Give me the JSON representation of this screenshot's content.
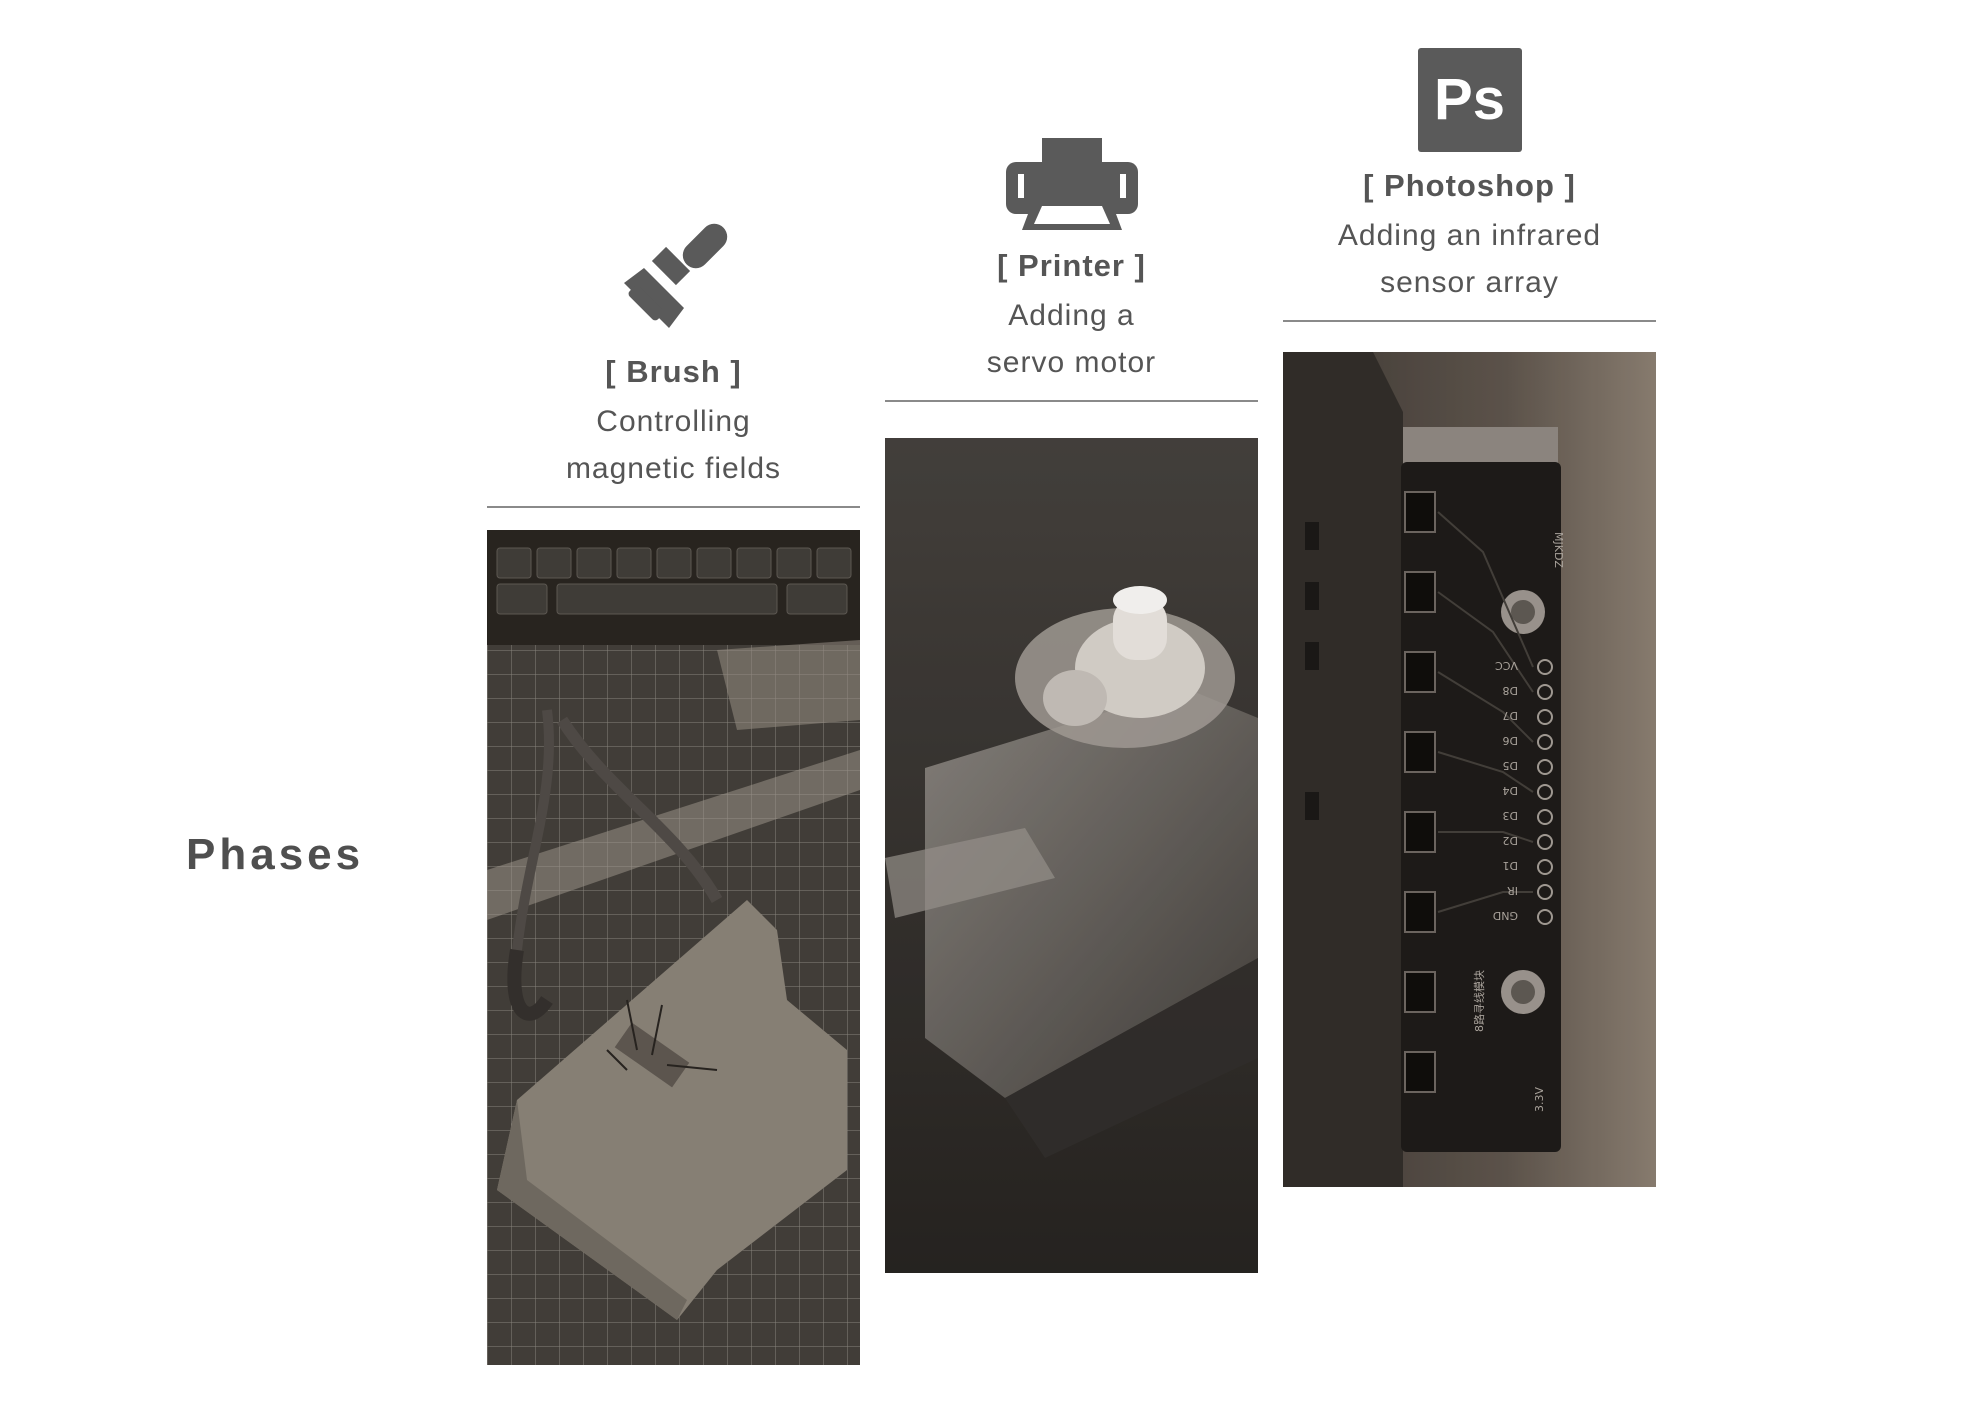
{
  "section": {
    "title": "Phases"
  },
  "phases": [
    {
      "icon": "paintbrush-icon",
      "name": "[ Brush ]",
      "description_lines": [
        "Controlling",
        "magnetic fields"
      ],
      "photo": "Workbench with pliers, cutting mat, keyboard and a cardboard brush with wire bristles"
    },
    {
      "icon": "printer-icon",
      "name": "[ Printer ]",
      "description_lines": [
        "Adding a",
        "servo motor"
      ],
      "photo": "Transparent servo motor with white gear"
    },
    {
      "icon": "photoshop-icon",
      "name": "[ Photoshop ]",
      "description_lines": [
        "Adding an infrared",
        "sensor array"
      ],
      "photo": "Infrared line-tracking sensor circuit board"
    }
  ],
  "board_labels": {
    "model": "MJKDZ",
    "pins": [
      "VCC",
      "D8",
      "D7",
      "D6",
      "D5",
      "D4",
      "D3",
      "D2",
      "D1",
      "IR",
      "GND"
    ],
    "chinese": "8路寻线模块",
    "voltage": "3.3V"
  },
  "photoshop_glyph": "Ps",
  "colors": {
    "text": "#555555",
    "icon": "#5a5a5a",
    "rule": "#8a8a8a",
    "background": "#ffffff"
  }
}
